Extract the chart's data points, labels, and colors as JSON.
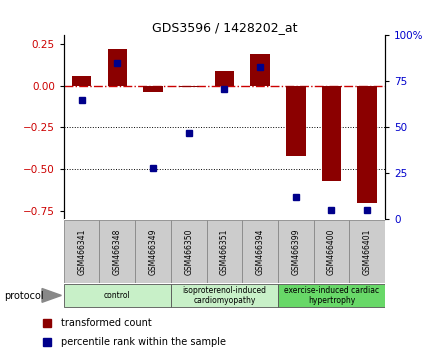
{
  "title": "GDS3596 / 1428202_at",
  "samples": [
    "GSM466341",
    "GSM466348",
    "GSM466349",
    "GSM466350",
    "GSM466351",
    "GSM466394",
    "GSM466399",
    "GSM466400",
    "GSM466401"
  ],
  "transformed_count": [
    0.06,
    0.22,
    -0.04,
    -0.01,
    0.09,
    0.19,
    -0.42,
    -0.57,
    -0.7
  ],
  "percentile_rank": [
    65,
    85,
    28,
    47,
    71,
    83,
    12,
    5,
    5
  ],
  "bar_color": "#8B0000",
  "dot_color": "#00008B",
  "ylim_left": [
    -0.8,
    0.3
  ],
  "ylim_right": [
    0,
    100
  ],
  "yticks_left": [
    -0.75,
    -0.5,
    -0.25,
    0,
    0.25
  ],
  "yticks_right": [
    0,
    25,
    50,
    75,
    100
  ],
  "hlines": [
    -0.25,
    -0.5
  ],
  "group_colors": [
    "#c8f0c8",
    "#c8f0c8",
    "#68d868"
  ],
  "group_labels": [
    "control",
    "isoproterenol-induced\ncardiomyopathy",
    "exercise-induced cardiac\nhypertrophy"
  ],
  "group_ranges": [
    [
      0,
      3
    ],
    [
      3,
      6
    ],
    [
      6,
      9
    ]
  ],
  "sample_bg": "#cccccc",
  "plot_bg": "#ffffff"
}
